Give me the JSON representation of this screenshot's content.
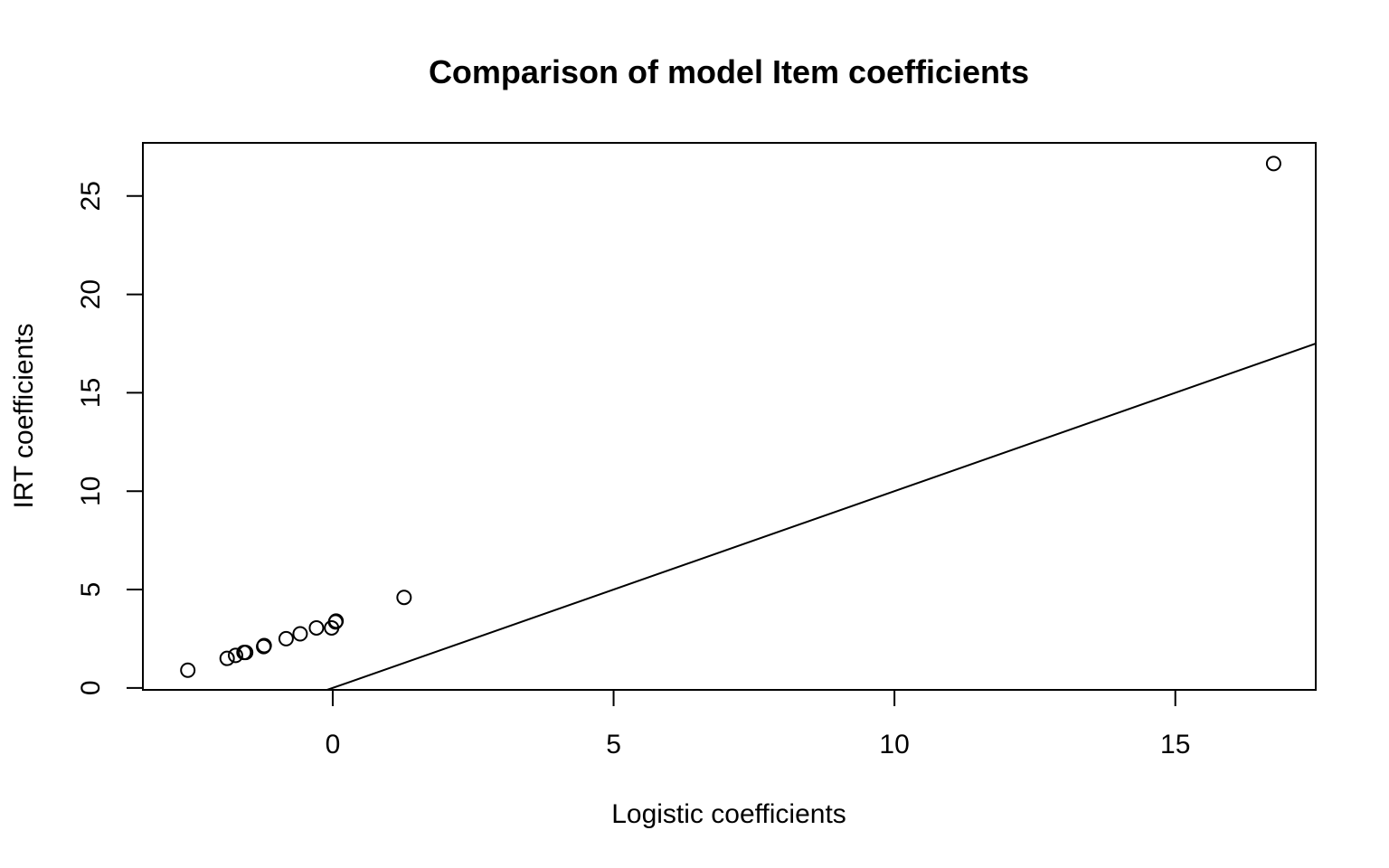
{
  "chart_data": {
    "type": "scatter",
    "title": "Comparison of model Item coefficients",
    "xlabel": "Logistic coefficients",
    "ylabel": "IRT coefficients",
    "xlim": [
      -3.38,
      17.5
    ],
    "ylim": [
      -0.1,
      27.7
    ],
    "x_ticks": [
      0,
      5,
      10,
      15
    ],
    "y_ticks": [
      0,
      5,
      10,
      15,
      20,
      25
    ],
    "x_tick_labels": [
      "0",
      "5",
      "10",
      "15"
    ],
    "y_tick_labels": [
      "0",
      "5",
      "10",
      "15",
      "20",
      "25"
    ],
    "grid": false,
    "reference_line": {
      "intercept": 0,
      "slope": 1
    },
    "points": [
      {
        "x": -2.58,
        "y": 0.9
      },
      {
        "x": -1.88,
        "y": 1.5
      },
      {
        "x": -1.73,
        "y": 1.65
      },
      {
        "x": -1.58,
        "y": 1.8
      },
      {
        "x": -1.55,
        "y": 1.8
      },
      {
        "x": -1.23,
        "y": 2.1
      },
      {
        "x": -1.22,
        "y": 2.15
      },
      {
        "x": -0.83,
        "y": 2.5
      },
      {
        "x": -0.58,
        "y": 2.75
      },
      {
        "x": -0.29,
        "y": 3.05
      },
      {
        "x": -0.02,
        "y": 3.05
      },
      {
        "x": 0.05,
        "y": 3.35
      },
      {
        "x": 0.06,
        "y": 3.4
      },
      {
        "x": 1.27,
        "y": 4.6
      },
      {
        "x": 16.75,
        "y": 26.65
      }
    ]
  }
}
